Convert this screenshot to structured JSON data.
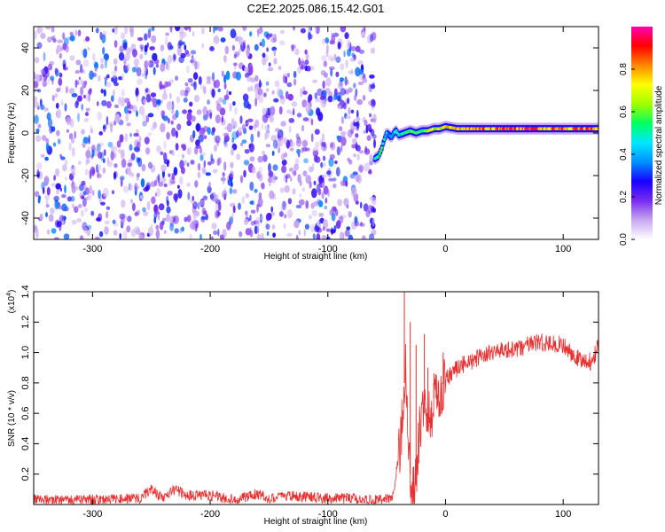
{
  "title": "C2E2.2025.086.15.42.G01",
  "chart_data": [
    {
      "type": "heatmap",
      "xlabel": "Height of straight line (km)",
      "ylabel": "Frequency (Hz)",
      "xlim": [
        -350,
        130
      ],
      "ylim": [
        -50,
        50
      ],
      "xticks": [
        -300,
        -200,
        -100,
        0,
        100
      ],
      "yticks": [
        -40,
        -20,
        0,
        20,
        40
      ],
      "colorbar": {
        "label": "Normalized spectral amplitude",
        "range": [
          0,
          1
        ],
        "ticks": [
          "0.0",
          "0.2",
          "0.4",
          "0.6",
          "0.8"
        ],
        "colors": [
          "#ffffff",
          "#c8a8f0",
          "#7a2cf0",
          "#1800ff",
          "#0090ff",
          "#00e8ff",
          "#00ff60",
          "#a0ff00",
          "#ffff00",
          "#ff8800",
          "#ff0000",
          "#ff00b0"
        ]
      },
      "noise_region_x": [
        -350,
        -60
      ],
      "signal_track": {
        "x": [
          -60,
          -57,
          -54,
          -52,
          -50,
          -48,
          -46,
          -44,
          -42,
          -40,
          -35,
          -30,
          -25,
          -20,
          -15,
          -10,
          -5,
          0,
          10,
          20,
          40,
          60,
          80,
          100,
          130
        ],
        "freq": [
          -12,
          -11,
          -7,
          -3,
          0,
          -1,
          -2,
          0,
          1,
          -1,
          0,
          1,
          0,
          1,
          1,
          2,
          2,
          3,
          2,
          2,
          2,
          2,
          2,
          2,
          2
        ],
        "amplitude": [
          0.55,
          0.6,
          0.6,
          0.5,
          0.45,
          0.35,
          0.4,
          0.45,
          0.5,
          0.5,
          0.55,
          0.6,
          0.6,
          0.65,
          0.7,
          0.75,
          0.75,
          0.8,
          0.8,
          0.85,
          0.9,
          0.95,
          0.95,
          0.95,
          0.95
        ]
      }
    },
    {
      "type": "line",
      "xlabel": "Height of straight line (km)",
      "ylabel": "SNR (10 * v/v)",
      "yscale_note": "(x10",
      "yscale_exp": "4",
      "xlim": [
        -350,
        130
      ],
      "ylim": [
        0,
        1.4
      ],
      "xticks": [
        -300,
        -200,
        -100,
        0,
        100
      ],
      "yticks": [
        "0.2",
        "0.4",
        "0.6",
        "0.8",
        "1.0",
        "1.2",
        "1.4"
      ],
      "series": [
        {
          "color": "#e83030",
          "x": [
            -350,
            -300,
            -260,
            -250,
            -240,
            -230,
            -220,
            -200,
            -180,
            -160,
            -150,
            -140,
            -120,
            -100,
            -80,
            -60,
            -45,
            -40,
            -36,
            -34,
            -32,
            -30,
            -28,
            -26,
            -24,
            -22,
            -20,
            -18,
            -15,
            -12,
            -10,
            -8,
            -5,
            0,
            5,
            10,
            20,
            30,
            40,
            50,
            60,
            70,
            80,
            90,
            100,
            110,
            120,
            125,
            130
          ],
          "y": [
            0.03,
            0.03,
            0.04,
            0.1,
            0.04,
            0.1,
            0.06,
            0.06,
            0.03,
            0.07,
            0.04,
            0.06,
            0.05,
            0.04,
            0.04,
            0.03,
            0.04,
            0.3,
            0.6,
            1.0,
            0.5,
            0.2,
            0.08,
            0.15,
            0.3,
            0.5,
            0.55,
            0.6,
            0.62,
            0.6,
            0.7,
            0.72,
            0.75,
            0.82,
            0.86,
            0.9,
            0.94,
            0.97,
            1.0,
            1.02,
            1.02,
            1.05,
            1.07,
            1.06,
            1.05,
            0.97,
            0.93,
            0.95,
            1.05
          ]
        }
      ],
      "spikes": [
        {
          "x": -35,
          "y": 1.4
        },
        {
          "x": -30,
          "y": 1.2
        },
        {
          "x": -25,
          "y": 1.05
        },
        {
          "x": -18,
          "y": 1.12
        },
        {
          "x": -15,
          "y": 0.9
        },
        {
          "x": -10,
          "y": 0.8
        },
        {
          "x": -2,
          "y": 1.0
        }
      ]
    }
  ]
}
